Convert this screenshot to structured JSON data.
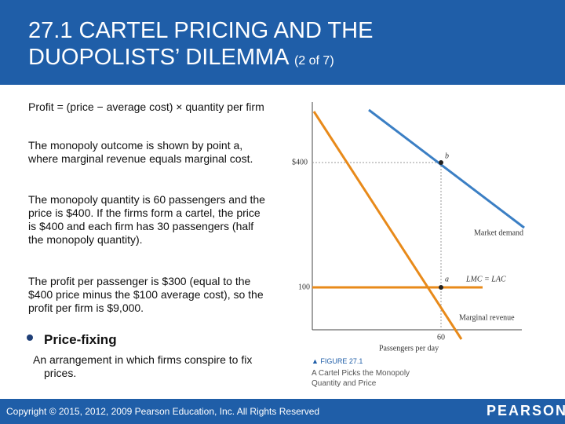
{
  "header": {
    "title": "27.1 CARTEL PRICING AND THE DUOPOLISTS’ DILEMMA",
    "part": "(2 of 7)"
  },
  "body": {
    "paragraphs": [
      "Profit = (price − average cost) × quantity per firm",
      "The monopoly outcome is shown by point a, where marginal revenue equals marginal cost.",
      "The monopoly quantity is 60 passengers and the price is $400. If the firms form a cartel, the price is $400 and each firm has 30 passengers (half the monopoly quantity).",
      "The profit per passenger is $300 (equal to the $400 price minus the $100 average cost), so the profit per  firm is $9,000."
    ],
    "bullet": {
      "term": "Price-fixing",
      "definition": "An arrangement in which firms conspire to fix prices."
    }
  },
  "figure": {
    "labels": {
      "y_400": "$400",
      "y_100": "100",
      "x_60": "60",
      "point_b": "b",
      "point_a": "a",
      "market_demand": "Market demand",
      "lmc": "LMC = LAC",
      "marginal_revenue": "Marginal revenue",
      "x_axis": "Passengers per day"
    },
    "caption": {
      "number": "FIGURE 27.1",
      "title": "A Cartel Picks the Monopoly Quantity and Price"
    }
  },
  "footer": {
    "copyright": "Copyright © 2015, 2012, 2009 Pearson Education, Inc. All Rights Reserved",
    "logo": "PEARSON"
  }
}
